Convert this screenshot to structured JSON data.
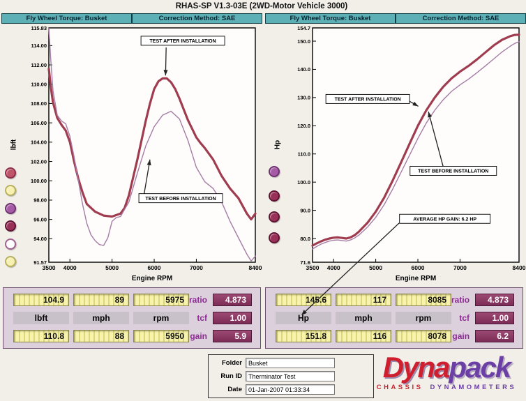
{
  "app": {
    "title": "RHAS-SP V1.3-03E (2WD-Motor Vehicle 3000)"
  },
  "charts": [
    {
      "header_left": "Fly Wheel Torque: Busket",
      "header_right": "Correction Method: SAE",
      "run_buttons": [
        {
          "fill": "#c05468",
          "stroke": "#8e2c4a"
        },
        {
          "fill": "#f6f0b2",
          "stroke": "#b8b05a"
        },
        {
          "fill": "#a55ba5",
          "stroke": "#6e3270"
        },
        {
          "fill": "#993058",
          "stroke": "#5e1232"
        },
        {
          "fill": "#ffffff",
          "stroke": "#a06090"
        },
        {
          "fill": "#f6f0b2",
          "stroke": "#b8b05a"
        }
      ]
    },
    {
      "header_left": "Fly Wheel Torque: Busket",
      "header_right": "Correction Method: SAE",
      "run_buttons": [
        {
          "fill": "#a55ba5",
          "stroke": "#6e3270"
        },
        {
          "fill": "#993058",
          "stroke": "#5e1232"
        },
        {
          "fill": "#993058",
          "stroke": "#5e1232"
        },
        {
          "fill": "#993058",
          "stroke": "#5e1232"
        }
      ]
    }
  ],
  "chart_data": [
    {
      "type": "line",
      "title": "",
      "xlabel": "Engine RPM",
      "ylabel": "lbft",
      "xlim": [
        3500,
        8400
      ],
      "ylim": [
        91.57,
        115.83
      ],
      "xticks": [
        3500,
        4000,
        5000,
        6000,
        7000,
        8400
      ],
      "xtick_labels": [
        "3500",
        "4000",
        "5000",
        "6000",
        "7000",
        "8400"
      ],
      "yticks": [
        115.83,
        114,
        112,
        110,
        108,
        106,
        104,
        102,
        100,
        98,
        96,
        94,
        91.57
      ],
      "ytick_labels": [
        "115.83",
        "114.00",
        "112.00",
        "110.00",
        "108.00",
        "106.00",
        "104.00",
        "102.00",
        "100.00",
        "98.00",
        "96.00",
        "94.00",
        "91.57"
      ],
      "grid": false,
      "series": [
        {
          "name": "TEST AFTER INSTALLATION",
          "color": "#a03c50",
          "width": 3.2,
          "x": [
            3500,
            3550,
            3600,
            3700,
            3800,
            3900,
            4000,
            4100,
            4200,
            4300,
            4400,
            4600,
            4800,
            5000,
            5200,
            5300,
            5400,
            5600,
            5800,
            5900,
            6000,
            6100,
            6200,
            6300,
            6400,
            6500,
            6600,
            6800,
            7000,
            7100,
            7200,
            7400,
            7600,
            7800,
            8000,
            8100,
            8200,
            8300,
            8400
          ],
          "y": [
            111.6,
            109.6,
            108.1,
            106.5,
            105.8,
            105.2,
            104.0,
            102.0,
            100.2,
            98.8,
            97.6,
            96.8,
            96.4,
            96.3,
            96.6,
            97.2,
            98.5,
            102.2,
            106.2,
            108.0,
            109.5,
            110.3,
            110.6,
            110.6,
            110.2,
            109.5,
            108.5,
            106.3,
            104.5,
            103.9,
            103.4,
            102.2,
            100.5,
            99.2,
            98.2,
            97.4,
            96.6,
            96.0,
            96.6
          ]
        },
        {
          "name": "TEST BEFORE INSTALLATION",
          "color": "#a57ca5",
          "width": 1.4,
          "x": [
            3500,
            3550,
            3600,
            3700,
            3800,
            3900,
            4000,
            4100,
            4200,
            4300,
            4400,
            4500,
            4600,
            4700,
            4800,
            4900,
            5000,
            5100,
            5200,
            5400,
            5600,
            5800,
            6000,
            6200,
            6400,
            6600,
            6800,
            7000,
            7200,
            7400,
            7600,
            7800,
            8000,
            8200,
            8300,
            8400
          ],
          "y": [
            115.8,
            112.3,
            109.3,
            106.8,
            106.2,
            105.9,
            104.6,
            102.5,
            100.0,
            97.6,
            95.6,
            94.4,
            93.8,
            93.4,
            93.3,
            94.1,
            95.8,
            96.2,
            96.3,
            97.8,
            100.8,
            103.6,
            105.6,
            106.8,
            107.2,
            106.4,
            104.2,
            101.4,
            99.9,
            99.2,
            97.8,
            95.8,
            94.1,
            92.4,
            91.7,
            92.2
          ]
        }
      ],
      "annotations": [
        {
          "label": "TEST AFTER INSTALLATION",
          "cx": 6680,
          "cy": 114.5,
          "w": 120,
          "h": 13,
          "arrow": {
            "x1": 6284,
            "y1": 113.8,
            "x2": 6270,
            "y2": 110.9
          }
        },
        {
          "label": "TEST BEFORE INSTALLATION",
          "cx": 6630,
          "cy": 98.2,
          "w": 120,
          "h": 13,
          "arrow": {
            "x1": 5760,
            "y1": 98.6,
            "x2": 5900,
            "y2": 102.2
          }
        }
      ]
    },
    {
      "type": "line",
      "title": "",
      "xlabel": "Engine RPM",
      "ylabel": "Hp",
      "xlim": [
        3500,
        8400
      ],
      "ylim": [
        71.6,
        154.7
      ],
      "xticks": [
        3500,
        4000,
        5000,
        6000,
        7000,
        8400
      ],
      "xtick_labels": [
        "3500",
        "4000",
        "5000",
        "6000",
        "7000",
        "8400"
      ],
      "yticks": [
        154.7,
        150,
        140,
        130,
        120,
        110,
        100,
        90,
        80,
        71.6
      ],
      "ytick_labels": [
        "154.7",
        "150.0",
        "140.0",
        "130.0",
        "120.0",
        "110.0",
        "100.0",
        "90.0",
        "80.0",
        "71.6"
      ],
      "grid": false,
      "series": [
        {
          "name": "TEST AFTER INSTALLATION",
          "color": "#a03c50",
          "width": 3.2,
          "x": [
            3500,
            3600,
            3700,
            3800,
            3900,
            4000,
            4100,
            4200,
            4300,
            4400,
            4500,
            4600,
            4800,
            5000,
            5200,
            5400,
            5600,
            5800,
            6000,
            6200,
            6400,
            6600,
            6800,
            7000,
            7200,
            7400,
            7600,
            7800,
            8000,
            8200,
            8300,
            8400
          ],
          "y": [
            77.5,
            78.3,
            79.0,
            79.6,
            80.0,
            80.3,
            80.4,
            80.2,
            80.0,
            80.4,
            81.2,
            82.4,
            85.5,
            89.5,
            94.5,
            100.5,
            107.0,
            113.5,
            120.0,
            125.5,
            130.0,
            133.8,
            136.8,
            139.2,
            141.2,
            143.5,
            146.0,
            148.5,
            150.5,
            151.8,
            152.2,
            152.3
          ]
        },
        {
          "name": "TEST BEFORE INSTALLATION",
          "color": "#a57ca5",
          "width": 1.4,
          "x": [
            3500,
            3600,
            3700,
            3800,
            3900,
            4000,
            4100,
            4200,
            4300,
            4400,
            4500,
            4600,
            4800,
            5000,
            5200,
            5400,
            5600,
            5800,
            6000,
            6200,
            6400,
            6600,
            6800,
            7000,
            7200,
            7400,
            7600,
            7800,
            8000,
            8200,
            8300,
            8400
          ],
          "y": [
            76.3,
            77.2,
            78.0,
            78.6,
            79.1,
            79.4,
            79.5,
            79.3,
            79.1,
            79.5,
            80.2,
            81.2,
            84.0,
            87.5,
            92.0,
            97.5,
            103.5,
            109.5,
            115.5,
            121.0,
            125.5,
            129.2,
            132.2,
            134.5,
            136.5,
            138.8,
            141.2,
            143.7,
            146.2,
            148.3,
            149.2,
            149.8
          ]
        }
      ],
      "annotations": [
        {
          "label": "TEST AFTER INSTALLATION",
          "cx": 4810,
          "cy": 129.5,
          "w": 120,
          "h": 13,
          "arrow": {
            "x1": 5730,
            "y1": 129.3,
            "x2": 6010,
            "y2": 126.9
          }
        },
        {
          "label": "TEST BEFORE INSTALLATION",
          "cx": 6840,
          "cy": 104.0,
          "w": 124,
          "h": 13,
          "arrow": {
            "x1": 6600,
            "y1": 105.5,
            "x2": 6250,
            "y2": 125.0
          }
        },
        {
          "label": "AVERAGE HP GAIN: 6.2 HP",
          "cx": 6640,
          "cy": 87.0,
          "w": 130,
          "h": 13
        }
      ]
    }
  ],
  "panels": [
    {
      "rows": [
        {
          "cells": [
            "104.9",
            "89",
            "5975"
          ],
          "stat_label": "ratio",
          "stat_value": "4.873"
        },
        {
          "cells": [
            "lbft",
            "mph",
            "rpm"
          ],
          "stat_label": "tcf",
          "stat_value": "1.00"
        },
        {
          "cells": [
            "110.8",
            "88",
            "5950"
          ],
          "stat_label": "gain",
          "stat_value": "5.9"
        }
      ]
    },
    {
      "rows": [
        {
          "cells": [
            "145.6",
            "117",
            "8085"
          ],
          "stat_label": "ratio",
          "stat_value": "4.873"
        },
        {
          "cells": [
            "Hp",
            "mph",
            "rpm"
          ],
          "stat_label": "tcf",
          "stat_value": "1.00"
        },
        {
          "cells": [
            "151.8",
            "116",
            "8078"
          ],
          "stat_label": "gain",
          "stat_value": "6.2"
        }
      ]
    }
  ],
  "footer": {
    "fields": [
      {
        "label": "Folder",
        "value": "Busket"
      },
      {
        "label": "Run ID",
        "value": "Therminator Test"
      },
      {
        "label": "Date",
        "value": "01-Jan-2007 01:33:34"
      }
    ],
    "logo": {
      "part1": "Dyna",
      "part2": "pack",
      "sub1": "CHASSIS",
      "sub2": "DYNAMOMETERS"
    }
  },
  "colors": {
    "header_teal": "#5cb0b6",
    "panel_lavender": "#dcd0dc",
    "lcd_yellow": "#f7f3ac",
    "stat_maroon": "#7c2c56",
    "curve_after": "#a03c50",
    "curve_before": "#a57ca5",
    "logo_red": "#cf1f2e",
    "logo_purple": "#6b3fa5"
  }
}
